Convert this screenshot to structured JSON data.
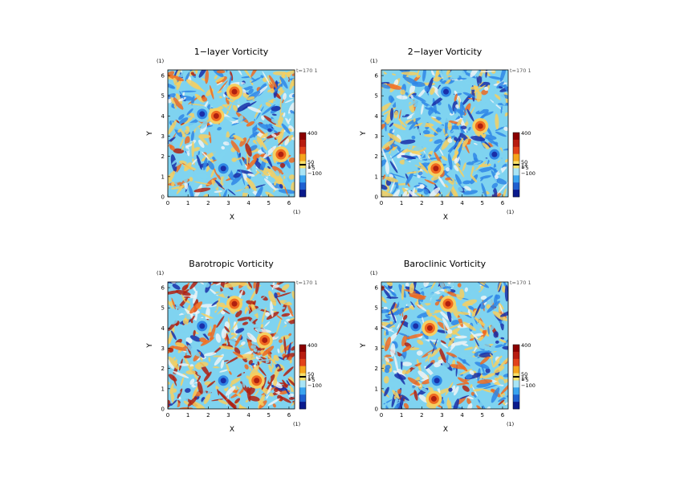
{
  "chart_data": [
    {
      "type": "heatmap",
      "title": "1−layer Vorticity",
      "xlabel": "X",
      "ylabel": "Y",
      "unit_x": "(1)",
      "unit_y": "(1)",
      "time_label": "t=170 1",
      "xlim": [
        0,
        6.28
      ],
      "ylim": [
        0,
        6.28
      ],
      "xticks": [
        "0",
        "1",
        "2",
        "3",
        "4",
        "5",
        "6"
      ],
      "yticks": [
        "0",
        "1",
        "2",
        "3",
        "4",
        "5",
        "6"
      ],
      "colorbar_labels": [
        "400",
        "50",
        "14",
        "1",
        "−5",
        "−100"
      ],
      "colorbar_values": [
        400,
        50,
        14,
        1,
        -5,
        -100
      ],
      "vortices": [
        {
          "x": 2.75,
          "y": 1.4,
          "sign": "negative"
        },
        {
          "x": 3.3,
          "y": 5.2,
          "sign": "positive"
        },
        {
          "x": 1.7,
          "y": 4.1,
          "sign": "negative"
        },
        {
          "x": 5.6,
          "y": 2.1,
          "sign": "positive"
        },
        {
          "x": 2.4,
          "y": 4.0,
          "sign": "positive"
        }
      ]
    },
    {
      "type": "heatmap",
      "title": "2−layer Vorticity",
      "xlabel": "X",
      "ylabel": "Y",
      "unit_x": "(1)",
      "unit_y": "(1)",
      "time_label": "t=170 1",
      "xlim": [
        0,
        6.28
      ],
      "ylim": [
        0,
        6.28
      ],
      "xticks": [
        "0",
        "1",
        "2",
        "3",
        "4",
        "5",
        "6"
      ],
      "yticks": [
        "0",
        "1",
        "2",
        "3",
        "4",
        "5",
        "6"
      ],
      "colorbar_labels": [
        "400",
        "50",
        "14",
        "1",
        "−5",
        "−100"
      ],
      "colorbar_values": [
        400,
        50,
        14,
        1,
        -5,
        -100
      ],
      "vortices": [
        {
          "x": 2.7,
          "y": 1.4,
          "sign": "positive"
        },
        {
          "x": 4.9,
          "y": 3.5,
          "sign": "positive"
        },
        {
          "x": 3.2,
          "y": 5.2,
          "sign": "negative"
        },
        {
          "x": 5.6,
          "y": 2.1,
          "sign": "negative"
        }
      ]
    },
    {
      "type": "heatmap",
      "title": "Barotropic Vorticity",
      "xlabel": "X",
      "ylabel": "Y",
      "unit_x": "(1)",
      "unit_y": "(1)",
      "time_label": "t=170 1",
      "xlim": [
        0,
        6.28
      ],
      "ylim": [
        0,
        6.28
      ],
      "xticks": [
        "0",
        "1",
        "2",
        "3",
        "4",
        "5",
        "6"
      ],
      "yticks": [
        "0",
        "1",
        "2",
        "3",
        "4",
        "5",
        "6"
      ],
      "colorbar_labels": [
        "400",
        "50",
        "14",
        "1",
        "−5",
        "−100"
      ],
      "colorbar_values": [
        400,
        50,
        14,
        1,
        -5,
        -100
      ],
      "vortices": [
        {
          "x": 2.75,
          "y": 1.4,
          "sign": "negative"
        },
        {
          "x": 3.3,
          "y": 5.2,
          "sign": "positive"
        },
        {
          "x": 1.7,
          "y": 4.1,
          "sign": "negative"
        },
        {
          "x": 4.4,
          "y": 1.4,
          "sign": "positive"
        },
        {
          "x": 4.8,
          "y": 3.4,
          "sign": "positive"
        }
      ]
    },
    {
      "type": "heatmap",
      "title": "Baroclinic Vorticity",
      "xlabel": "X",
      "ylabel": "Y",
      "unit_x": "(1)",
      "unit_y": "(1)",
      "time_label": "t=170 1",
      "xlim": [
        0,
        6.28
      ],
      "ylim": [
        0,
        6.28
      ],
      "xticks": [
        "0",
        "1",
        "2",
        "3",
        "4",
        "5",
        "6"
      ],
      "yticks": [
        "0",
        "1",
        "2",
        "3",
        "4",
        "5",
        "6"
      ],
      "colorbar_labels": [
        "400",
        "50",
        "14",
        "1",
        "−5",
        "−100"
      ],
      "colorbar_values": [
        400,
        50,
        14,
        1,
        -5,
        -100
      ],
      "vortices": [
        {
          "x": 2.75,
          "y": 1.4,
          "sign": "negative"
        },
        {
          "x": 3.3,
          "y": 5.2,
          "sign": "positive"
        },
        {
          "x": 1.7,
          "y": 4.1,
          "sign": "negative"
        },
        {
          "x": 2.6,
          "y": 0.5,
          "sign": "positive"
        },
        {
          "x": 2.4,
          "y": 4.0,
          "sign": "positive"
        }
      ]
    }
  ],
  "colors": {
    "strong_positive": "#b02010",
    "positive": "#f06a20",
    "weak_positive": "#f6cf60",
    "neutral": "#eef3f6",
    "weak_negative": "#7fd3f0",
    "negative": "#2f86e6",
    "strong_negative": "#1a2fa8",
    "colorbar": [
      "#8b0000",
      "#b81c10",
      "#e2421a",
      "#f5a51c",
      "#f7e16a",
      "#a8e4f5",
      "#3aa4f0",
      "#1e5fd0",
      "#0a1a8c"
    ]
  }
}
